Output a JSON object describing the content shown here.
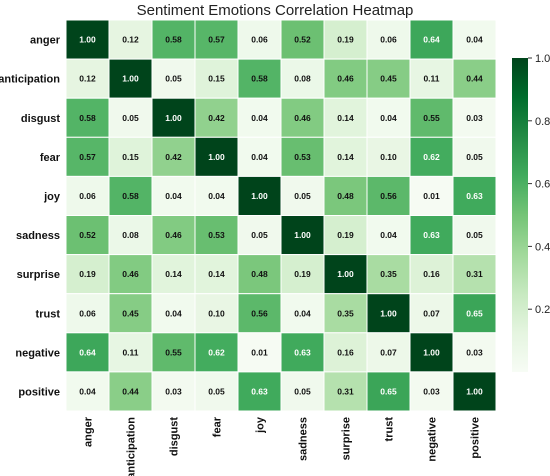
{
  "chart_data": {
    "type": "heatmap",
    "title": "Sentiment Emotions Correlation Heatmap",
    "rows": [
      "anger",
      "anticipation",
      "disgust",
      "fear",
      "joy",
      "sadness",
      "surprise",
      "trust",
      "negative",
      "positive"
    ],
    "columns": [
      "anger",
      "anticipation",
      "disgust",
      "fear",
      "joy",
      "sadness",
      "surprise",
      "trust",
      "negative",
      "positive"
    ],
    "values": [
      [
        1.0,
        0.12,
        0.58,
        0.57,
        0.06,
        0.52,
        0.19,
        0.06,
        0.64,
        0.04
      ],
      [
        0.12,
        1.0,
        0.05,
        0.15,
        0.58,
        0.08,
        0.46,
        0.45,
        0.11,
        0.44
      ],
      [
        0.58,
        0.05,
        1.0,
        0.42,
        0.04,
        0.46,
        0.14,
        0.04,
        0.55,
        0.03
      ],
      [
        0.57,
        0.15,
        0.42,
        1.0,
        0.04,
        0.53,
        0.14,
        0.1,
        0.62,
        0.05
      ],
      [
        0.06,
        0.58,
        0.04,
        0.04,
        1.0,
        0.05,
        0.48,
        0.56,
        0.01,
        0.63
      ],
      [
        0.52,
        0.08,
        0.46,
        0.53,
        0.05,
        1.0,
        0.19,
        0.04,
        0.63,
        0.05
      ],
      [
        0.19,
        0.46,
        0.14,
        0.14,
        0.48,
        0.19,
        1.0,
        0.35,
        0.16,
        0.31
      ],
      [
        0.06,
        0.45,
        0.04,
        0.1,
        0.56,
        0.04,
        0.35,
        1.0,
        0.07,
        0.65
      ],
      [
        0.64,
        0.11,
        0.55,
        0.62,
        0.01,
        0.63,
        0.16,
        0.07,
        1.0,
        0.03
      ],
      [
        0.04,
        0.44,
        0.03,
        0.05,
        0.63,
        0.05,
        0.31,
        0.65,
        0.03,
        1.0
      ]
    ],
    "colormap": "Greens",
    "colorbar": {
      "range": [
        0,
        1.0
      ],
      "ticks": [
        0.2,
        0.4,
        0.6,
        0.8,
        1.0
      ]
    },
    "annotations": true
  }
}
